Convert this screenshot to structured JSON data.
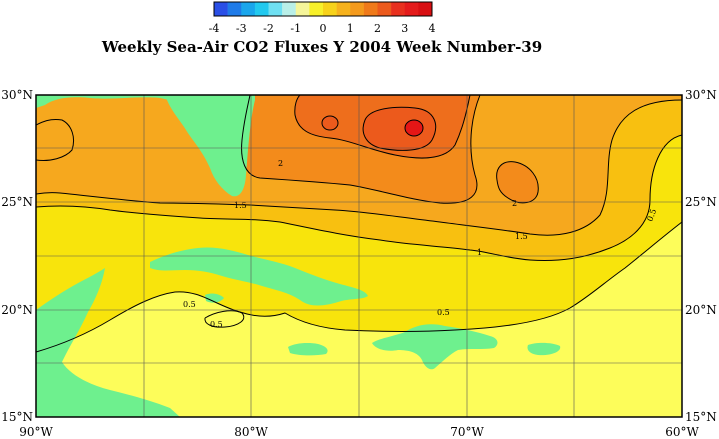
{
  "title": "Weekly Sea-Air CO2 Fluxes Y 2004 Week Number-39",
  "colorbar": {
    "labels": [
      "-4",
      "-3",
      "-2",
      "-1",
      "0",
      "1",
      "2",
      "3",
      "4"
    ],
    "range": [
      -4,
      4
    ],
    "colors": [
      "#2a4fe6",
      "#1f7be8",
      "#1aa6ec",
      "#22c9ef",
      "#6fe0f2",
      "#b9efe8",
      "#f5f59a",
      "#f7f02a",
      "#f7d21a",
      "#f6b21c",
      "#f49a1c",
      "#f07a1a",
      "#ec5a1c",
      "#e8301e",
      "#e41b1b",
      "#d80f12"
    ]
  },
  "map": {
    "lon_range": [
      -90,
      -60
    ],
    "lat_range": [
      15,
      30
    ],
    "lat_labels": [
      "30°N",
      "25°N",
      "20°N",
      "15°N"
    ],
    "lon_labels": [
      "90°W",
      "80°W",
      "70°W",
      "60°W"
    ],
    "contour_labels": [
      "2",
      "1.5",
      "2",
      "1.5",
      "1",
      "0.5",
      "0.5",
      "0.5",
      "0.5"
    ],
    "colors": {
      "land": "#6ef08e",
      "flux_0_0.5": "#fdfd5a",
      "flux_0.5_1": "#f8e40c",
      "flux_1_1.5": "#f8c010",
      "flux_1.5_2": "#f6a81e",
      "flux_2_2.5": "#f38b1b",
      "flux_2.5_3": "#ee6e1c",
      "flux_3_3.5": "#ec5a1c",
      "flux_4plus": "#e51616"
    }
  }
}
